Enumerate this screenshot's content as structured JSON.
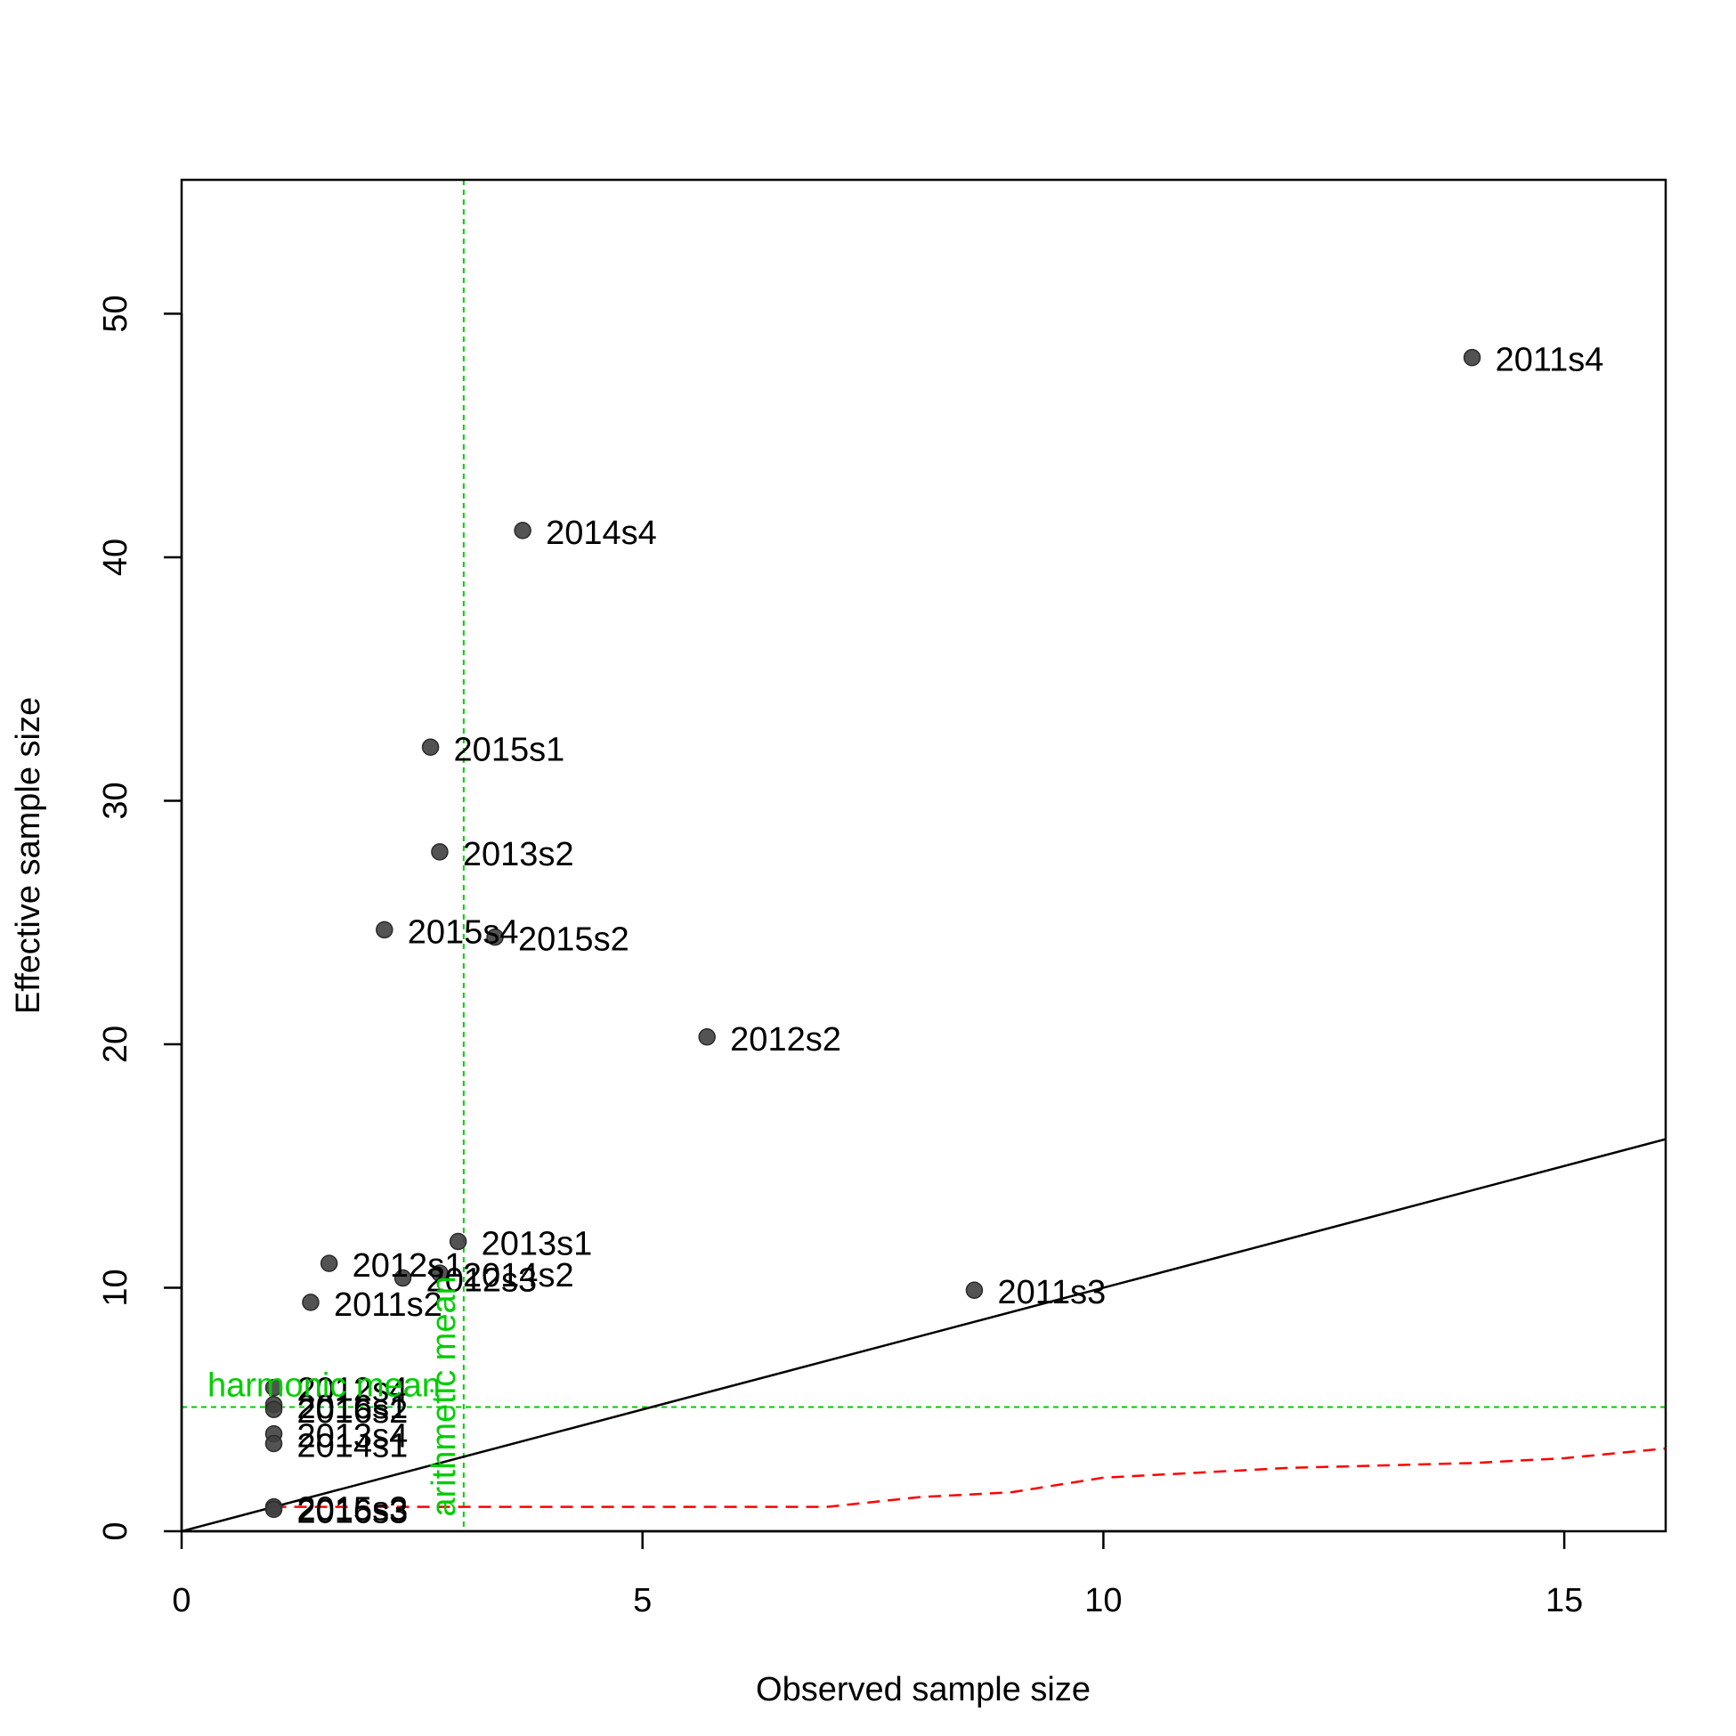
{
  "chart_data": {
    "type": "scatter",
    "title": "",
    "xlabel": "Observed sample size",
    "ylabel": "Effective sample size",
    "xlim": [
      0,
      16.1
    ],
    "ylim": [
      0,
      55.5
    ],
    "xticks": [
      0,
      5,
      10,
      15
    ],
    "yticks": [
      0,
      10,
      20,
      30,
      40,
      50
    ],
    "grid": false,
    "point_color": "#404040",
    "points": [
      {
        "label": "2011s4",
        "x": 14.0,
        "y": 48.2
      },
      {
        "label": "2014s4",
        "x": 3.7,
        "y": 41.1
      },
      {
        "label": "2015s1",
        "x": 2.7,
        "y": 32.2
      },
      {
        "label": "2013s2",
        "x": 2.8,
        "y": 27.9
      },
      {
        "label": "2015s4",
        "x": 2.2,
        "y": 24.7
      },
      {
        "label": "2015s2",
        "x": 3.4,
        "y": 24.4
      },
      {
        "label": "2012s2",
        "x": 5.7,
        "y": 20.3
      },
      {
        "label": "2013s1",
        "x": 3.0,
        "y": 11.9
      },
      {
        "label": "2012s1",
        "x": 1.6,
        "y": 11.0
      },
      {
        "label": "2014s2",
        "x": 2.8,
        "y": 10.6
      },
      {
        "label": "2012s3",
        "x": 2.4,
        "y": 10.4
      },
      {
        "label": "2011s2",
        "x": 1.4,
        "y": 9.4
      },
      {
        "label": "2011s3",
        "x": 8.6,
        "y": 9.9
      },
      {
        "label": "2012s4",
        "x": 1.0,
        "y": 5.9
      },
      {
        "label": "2016s1",
        "x": 1.0,
        "y": 5.2
      },
      {
        "label": "2016s2",
        "x": 1.0,
        "y": 5.0
      },
      {
        "label": "2013s4",
        "x": 1.0,
        "y": 4.0
      },
      {
        "label": "2014s1",
        "x": 1.0,
        "y": 3.6
      },
      {
        "label": "2015s3",
        "x": 1.0,
        "y": 1.0
      },
      {
        "label": "2016s3",
        "x": 1.0,
        "y": 0.9
      }
    ],
    "identity_line": {
      "color": "#000000",
      "x": [
        0,
        16.1
      ],
      "y": [
        0,
        16.1
      ]
    },
    "red_dashed_line": {
      "color": "#ff0000",
      "x": [
        1,
        3,
        5,
        7,
        8,
        9,
        10,
        11,
        12,
        13,
        14,
        15,
        16.1
      ],
      "y": [
        1.0,
        1.0,
        1.0,
        1.0,
        1.4,
        1.6,
        2.2,
        2.4,
        2.6,
        2.7,
        2.8,
        3.0,
        3.4
      ]
    },
    "reference_lines": {
      "color": "#00cd00",
      "harmonic_mean": {
        "label": "harmonic mean",
        "y": 5.1
      },
      "arithmetic_mean": {
        "label": "arithmetic mean",
        "x": 3.06
      }
    }
  }
}
